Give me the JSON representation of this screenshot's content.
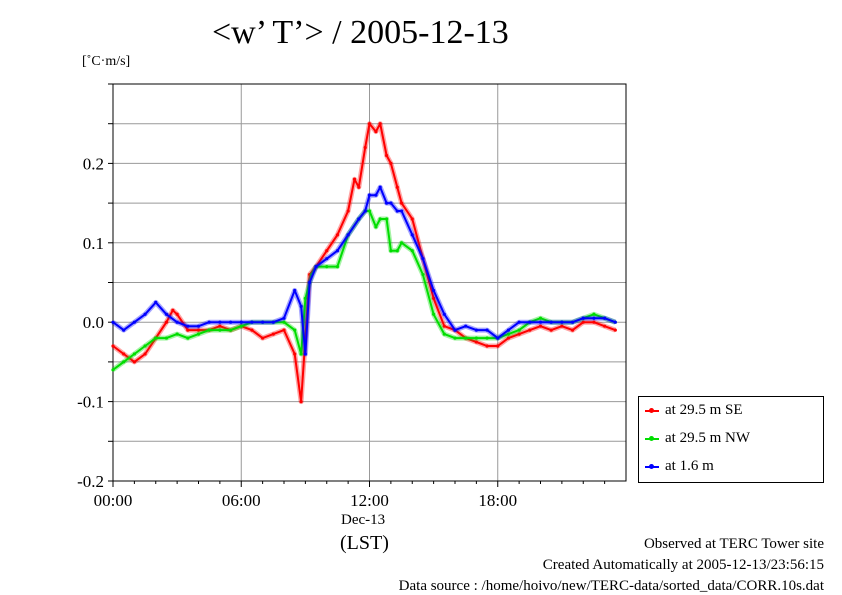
{
  "chart_data": {
    "type": "line",
    "title": "<w’ T’> / 2005-12-13",
    "ylabel": "[˚C·m/s]",
    "xlabel_date": "Dec-13",
    "xlabel_tz": "(LST)",
    "xlim_hours": [
      0,
      24
    ],
    "ylim": [
      -0.2,
      0.3
    ],
    "x_ticks": [
      {
        "label": "00:00",
        "hour": 0
      },
      {
        "label": "06:00",
        "hour": 6
      },
      {
        "label": "12:00",
        "hour": 12
      },
      {
        "label": "18:00",
        "hour": 18
      }
    ],
    "y_ticks": [
      {
        "label": "0.2",
        "value": 0.2
      },
      {
        "label": "0.1",
        "value": 0.1
      },
      {
        "label": "0.0",
        "value": 0.0
      },
      {
        "label": "-0.1",
        "value": -0.1
      },
      {
        "label": "-0.2",
        "value": -0.2
      }
    ],
    "grid": true,
    "legend_position": "outside-right-bottom",
    "series": [
      {
        "name": "at 29.5 m SE",
        "color": "#ff0000",
        "x": [
          0,
          0.5,
          1,
          1.5,
          2,
          2.5,
          2.8,
          3,
          3.5,
          4,
          4.5,
          5,
          5.5,
          6,
          6.5,
          7,
          7.5,
          8,
          8.5,
          8.8,
          9,
          9.2,
          9.5,
          10,
          10.5,
          11,
          11.3,
          11.5,
          11.8,
          12,
          12.3,
          12.5,
          12.8,
          13,
          13.3,
          13.5,
          14,
          14.5,
          15,
          15.5,
          16,
          16.5,
          17,
          17.5,
          18,
          18.5,
          19,
          19.5,
          20,
          20.5,
          21,
          21.5,
          22,
          22.5,
          23,
          23.5
        ],
        "y": [
          -0.03,
          -0.04,
          -0.05,
          -0.04,
          -0.02,
          0.0,
          0.015,
          0.01,
          -0.01,
          -0.01,
          -0.01,
          -0.005,
          -0.01,
          -0.005,
          -0.01,
          -0.02,
          -0.015,
          -0.01,
          -0.04,
          -0.1,
          -0.02,
          0.06,
          0.07,
          0.09,
          0.11,
          0.14,
          0.18,
          0.17,
          0.22,
          0.25,
          0.24,
          0.25,
          0.21,
          0.2,
          0.17,
          0.15,
          0.13,
          0.08,
          0.03,
          -0.005,
          -0.01,
          -0.02,
          -0.025,
          -0.03,
          -0.03,
          -0.02,
          -0.015,
          -0.01,
          -0.005,
          -0.01,
          -0.005,
          -0.01,
          0.0,
          0.0,
          -0.005,
          -0.01
        ]
      },
      {
        "name": "at 29.5 m NW",
        "color": "#00dd00",
        "x": [
          0,
          0.5,
          1,
          1.5,
          2,
          2.5,
          3,
          3.5,
          4,
          4.5,
          5,
          5.5,
          6,
          6.5,
          7,
          7.5,
          8,
          8.5,
          8.8,
          9,
          9.3,
          9.5,
          10,
          10.5,
          11,
          11.5,
          11.8,
          12,
          12.3,
          12.5,
          12.8,
          13,
          13.3,
          13.5,
          14,
          14.5,
          15,
          15.5,
          16,
          16.5,
          17,
          17.5,
          18,
          18.5,
          19,
          19.5,
          20,
          20.5,
          21,
          21.5,
          22,
          22.5,
          23,
          23.5
        ],
        "y": [
          -0.06,
          -0.05,
          -0.04,
          -0.03,
          -0.02,
          -0.02,
          -0.015,
          -0.02,
          -0.015,
          -0.01,
          -0.01,
          -0.01,
          -0.005,
          0.0,
          0.0,
          0.0,
          0.0,
          -0.01,
          -0.04,
          0.03,
          0.06,
          0.07,
          0.07,
          0.07,
          0.11,
          0.13,
          0.14,
          0.14,
          0.12,
          0.13,
          0.13,
          0.09,
          0.09,
          0.1,
          0.09,
          0.06,
          0.01,
          -0.015,
          -0.02,
          -0.02,
          -0.02,
          -0.02,
          -0.02,
          -0.015,
          -0.01,
          0.0,
          0.005,
          0.0,
          0.0,
          0.0,
          0.005,
          0.01,
          0.005,
          0.0
        ]
      },
      {
        "name": "at 1.6 m",
        "color": "#0000ff",
        "x": [
          0,
          0.5,
          1,
          1.5,
          2,
          2.5,
          3,
          3.5,
          4,
          4.5,
          5,
          5.5,
          6,
          6.5,
          7,
          7.5,
          8,
          8.5,
          8.8,
          9,
          9.2,
          9.5,
          10,
          10.5,
          11,
          11.5,
          11.8,
          12,
          12.3,
          12.5,
          12.8,
          13,
          13.3,
          13.5,
          14,
          14.5,
          15,
          15.5,
          16,
          16.5,
          17,
          17.5,
          18,
          18.5,
          19,
          19.5,
          20,
          20.5,
          21,
          21.5,
          22,
          22.5,
          23,
          23.5
        ],
        "y": [
          0.0,
          -0.01,
          0.0,
          0.01,
          0.025,
          0.01,
          0.0,
          -0.005,
          -0.005,
          0.0,
          0.0,
          0.0,
          0.0,
          0.0,
          0.0,
          0.0,
          0.005,
          0.04,
          0.02,
          -0.04,
          0.05,
          0.07,
          0.08,
          0.09,
          0.11,
          0.13,
          0.14,
          0.16,
          0.16,
          0.17,
          0.15,
          0.15,
          0.14,
          0.14,
          0.11,
          0.08,
          0.04,
          0.01,
          -0.01,
          -0.005,
          -0.01,
          -0.01,
          -0.02,
          -0.01,
          0.0,
          0.0,
          0.0,
          0.0,
          0.0,
          0.0,
          0.005,
          0.005,
          0.005,
          0.0
        ]
      }
    ]
  },
  "footer": {
    "line1": "Observed at TERC Tower site",
    "line2": "Created Automatically at 2005-12-13/23:56:15",
    "line3": "Data source : /home/hoivo/new/TERC-data/sorted_data/CORR.10s.dat"
  }
}
